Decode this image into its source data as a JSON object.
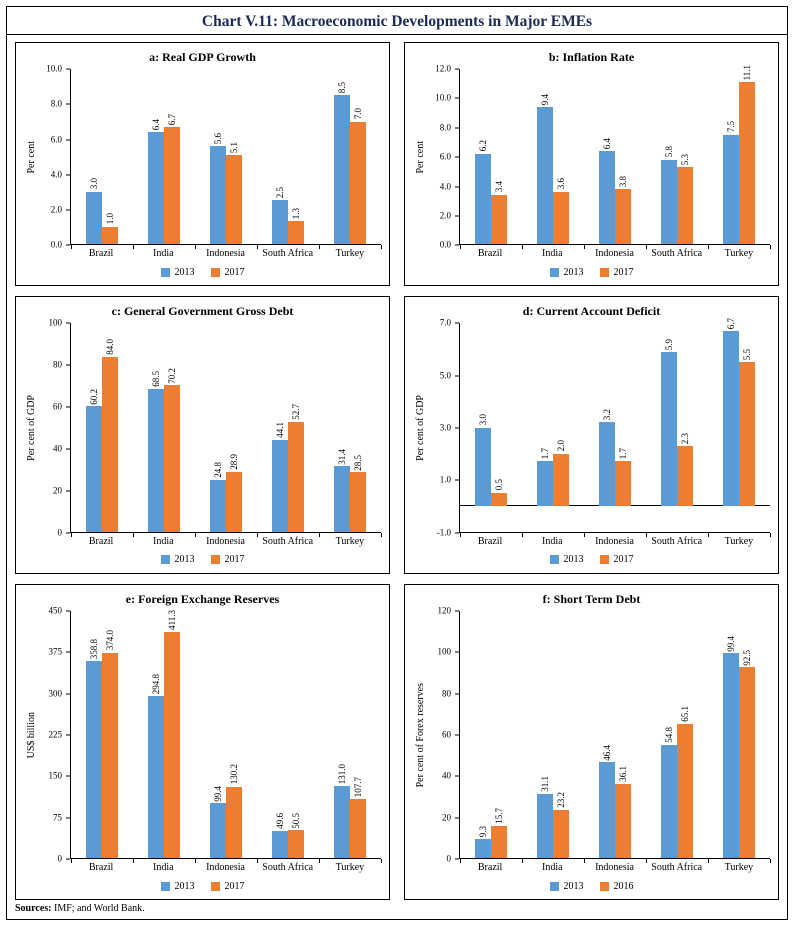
{
  "page": {
    "title": "Chart V.11: Macroeconomic Developments in Major EMEs",
    "footer_bold": "Sources:",
    "footer_rest": " IMF; and World Bank."
  },
  "colors": {
    "series_blue": "#5b9bd5",
    "series_orange": "#ed7d31"
  },
  "chart_data": [
    {
      "type": "bar",
      "title": "a: Real GDP Growth",
      "ylabel": "Per cent",
      "categories": [
        "Brazil",
        "India",
        "Indonesia",
        "South Africa",
        "Turkey"
      ],
      "series": [
        {
          "name": "2013",
          "color": "#5b9bd5",
          "values": [
            3.0,
            6.4,
            5.6,
            2.5,
            8.5
          ]
        },
        {
          "name": "2017",
          "color": "#ed7d31",
          "values": [
            1.0,
            6.7,
            5.1,
            1.3,
            7.0
          ]
        }
      ],
      "ylim": [
        0,
        10
      ],
      "yticks": [
        0,
        2,
        4,
        6,
        8,
        10
      ],
      "tick_decimals": 1,
      "grid": false,
      "legend_position": "bottom"
    },
    {
      "type": "bar",
      "title": "b: Inflation Rate",
      "ylabel": "Per cent",
      "categories": [
        "Brazil",
        "India",
        "Indonesia",
        "South Africa",
        "Turkey"
      ],
      "series": [
        {
          "name": "2013",
          "color": "#5b9bd5",
          "values": [
            6.2,
            9.4,
            6.4,
            5.8,
            7.5
          ]
        },
        {
          "name": "2017",
          "color": "#ed7d31",
          "values": [
            3.4,
            3.6,
            3.8,
            5.3,
            11.1
          ]
        }
      ],
      "ylim": [
        0,
        12
      ],
      "yticks": [
        0,
        2,
        4,
        6,
        8,
        10,
        12
      ],
      "tick_decimals": 1,
      "grid": false,
      "legend_position": "bottom"
    },
    {
      "type": "bar",
      "title": "c: General Government Gross Debt",
      "ylabel": "Per cent of GDP",
      "categories": [
        "Brazil",
        "India",
        "Indonesia",
        "South Africa",
        "Turkey"
      ],
      "series": [
        {
          "name": "2013",
          "color": "#5b9bd5",
          "values": [
            60.2,
            68.5,
            24.8,
            44.1,
            31.4
          ]
        },
        {
          "name": "2017",
          "color": "#ed7d31",
          "values": [
            84.0,
            70.2,
            28.9,
            52.7,
            28.5
          ]
        }
      ],
      "ylim": [
        0,
        100
      ],
      "yticks": [
        0,
        20,
        40,
        60,
        80,
        100
      ],
      "tick_decimals": 0,
      "grid": false,
      "legend_position": "bottom"
    },
    {
      "type": "bar",
      "title": "d: Current Account Deficit",
      "ylabel": "Per cent of GDP",
      "categories": [
        "Brazil",
        "India",
        "Indonesia",
        "South Africa",
        "Turkey"
      ],
      "series": [
        {
          "name": "2013",
          "color": "#5b9bd5",
          "values": [
            3.0,
            1.7,
            3.2,
            5.9,
            6.7
          ]
        },
        {
          "name": "2017",
          "color": "#ed7d31",
          "values": [
            0.5,
            2.0,
            1.7,
            2.3,
            5.5
          ]
        }
      ],
      "ylim": [
        -1,
        7
      ],
      "yticks": [
        -1,
        1,
        3,
        5,
        7
      ],
      "tick_decimals": 1,
      "grid": false,
      "legend_position": "bottom"
    },
    {
      "type": "bar",
      "title": "e: Foreign Exchange Reserves",
      "ylabel": "US$ billion",
      "categories": [
        "Brazil",
        "India",
        "Indonesia",
        "South Africa",
        "Turkey"
      ],
      "series": [
        {
          "name": "2013",
          "color": "#5b9bd5",
          "values": [
            358.8,
            294.8,
            99.4,
            49.6,
            131.0
          ]
        },
        {
          "name": "2017",
          "color": "#ed7d31",
          "values": [
            374.0,
            411.3,
            130.2,
            50.5,
            107.7
          ]
        }
      ],
      "ylim": [
        0,
        450
      ],
      "yticks": [
        0,
        75,
        150,
        225,
        300,
        375,
        450
      ],
      "tick_decimals": 0,
      "grid": false,
      "legend_position": "bottom"
    },
    {
      "type": "bar",
      "title": "f: Short Term Debt",
      "ylabel": "Per cent of Forex reserves",
      "categories": [
        "Brazil",
        "India",
        "Indonesia",
        "South Africa",
        "Turkey"
      ],
      "series": [
        {
          "name": "2013",
          "color": "#5b9bd5",
          "values": [
            9.3,
            31.1,
            46.4,
            54.8,
            99.4
          ]
        },
        {
          "name": "2016",
          "color": "#ed7d31",
          "values": [
            15.7,
            23.2,
            36.1,
            65.1,
            92.5
          ]
        }
      ],
      "ylim": [
        0,
        120
      ],
      "yticks": [
        0,
        20,
        40,
        60,
        80,
        100,
        120
      ],
      "tick_decimals": 0,
      "grid": false,
      "legend_position": "bottom"
    }
  ]
}
